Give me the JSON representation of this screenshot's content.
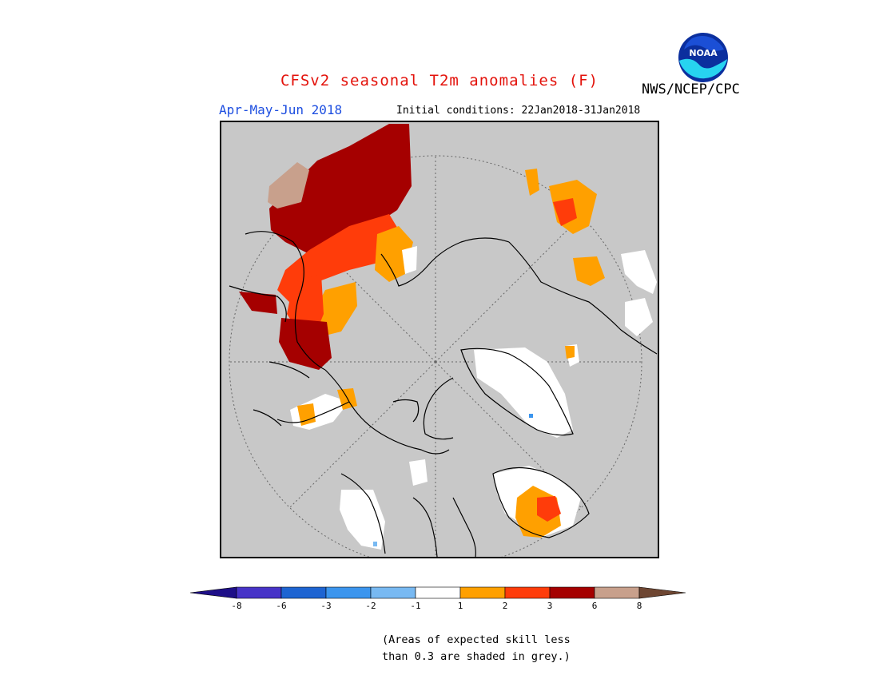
{
  "header": {
    "title": "CFSv2 seasonal T2m anomalies (F)",
    "season": "Apr-May-Jun 2018",
    "initial_conditions": "Initial conditions: 22Jan2018-31Jan2018",
    "agency": "NWS/NCEP/CPC",
    "logo_text": "NOAA"
  },
  "colors": {
    "title": "#e3120b",
    "season": "#1d4ee0",
    "skill_grey": "#c8c8c8"
  },
  "legend": {
    "bins": [
      {
        "color": "#1e0f88"
      },
      {
        "color": "#4733c8"
      },
      {
        "color": "#1d64d2"
      },
      {
        "color": "#3b95ee"
      },
      {
        "color": "#78b9f2"
      },
      {
        "color": "#ffffff"
      },
      {
        "color": "#ffa000"
      },
      {
        "color": "#ff3c0a"
      },
      {
        "color": "#a50000"
      },
      {
        "color": "#c8a08c"
      },
      {
        "color": "#6e4632"
      }
    ],
    "ticks": [
      "-8",
      "-6",
      "-3",
      "-2",
      "-1",
      "1",
      "2",
      "3",
      "6",
      "8"
    ]
  },
  "footnote": {
    "line1": "(Areas of expected skill less",
    "line2": "than 0.3 are shaded in grey.)"
  }
}
